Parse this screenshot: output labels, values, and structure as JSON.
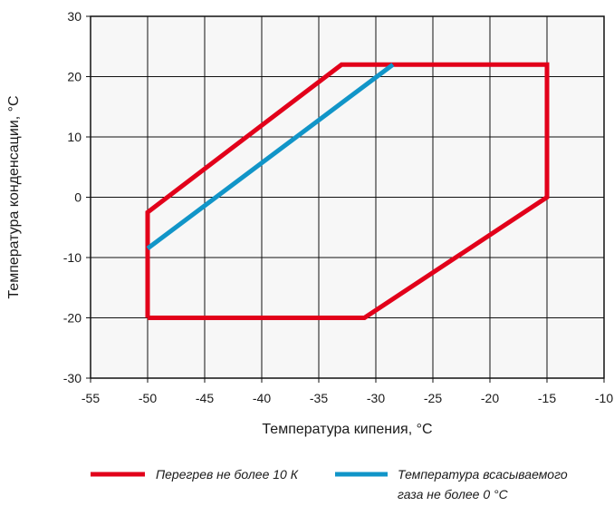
{
  "chart_data": {
    "type": "line",
    "title": "",
    "xlabel": "Температура кипения, °C",
    "ylabel": "Температура конденсации, °C",
    "xlim": [
      -55,
      -10
    ],
    "ylim": [
      -30,
      30
    ],
    "xticks": [
      -55,
      -50,
      -45,
      -40,
      -35,
      -30,
      -25,
      -20,
      -15,
      -10
    ],
    "yticks": [
      -30,
      -20,
      -10,
      0,
      10,
      20,
      30
    ],
    "x_tick_labels": [
      "-55",
      "-50",
      "-45",
      "-40",
      "-35",
      "-30",
      "-25",
      "-20",
      "-15",
      "-10"
    ],
    "y_tick_labels": [
      "-30",
      "-20",
      "-10",
      "0",
      "10",
      "20",
      "30"
    ],
    "grid": true,
    "legend_position": "bottom",
    "series": [
      {
        "name": "Перегрев не более 10 К",
        "color": "#e2001a",
        "points": [
          [
            -50,
            -20
          ],
          [
            -31,
            -20
          ],
          [
            -15,
            0
          ],
          [
            -15,
            22
          ],
          [
            -33,
            22
          ],
          [
            -50,
            -2.5
          ],
          [
            -50,
            -20
          ]
        ]
      },
      {
        "name": "Температура всасываемого газа не более 0 °C",
        "name_lines": [
          "Температура всасываемого",
          "газа не более 0 °C"
        ],
        "color": "#1195c8",
        "points": [
          [
            -50,
            -8.5
          ],
          [
            -28.5,
            22
          ]
        ]
      }
    ]
  }
}
